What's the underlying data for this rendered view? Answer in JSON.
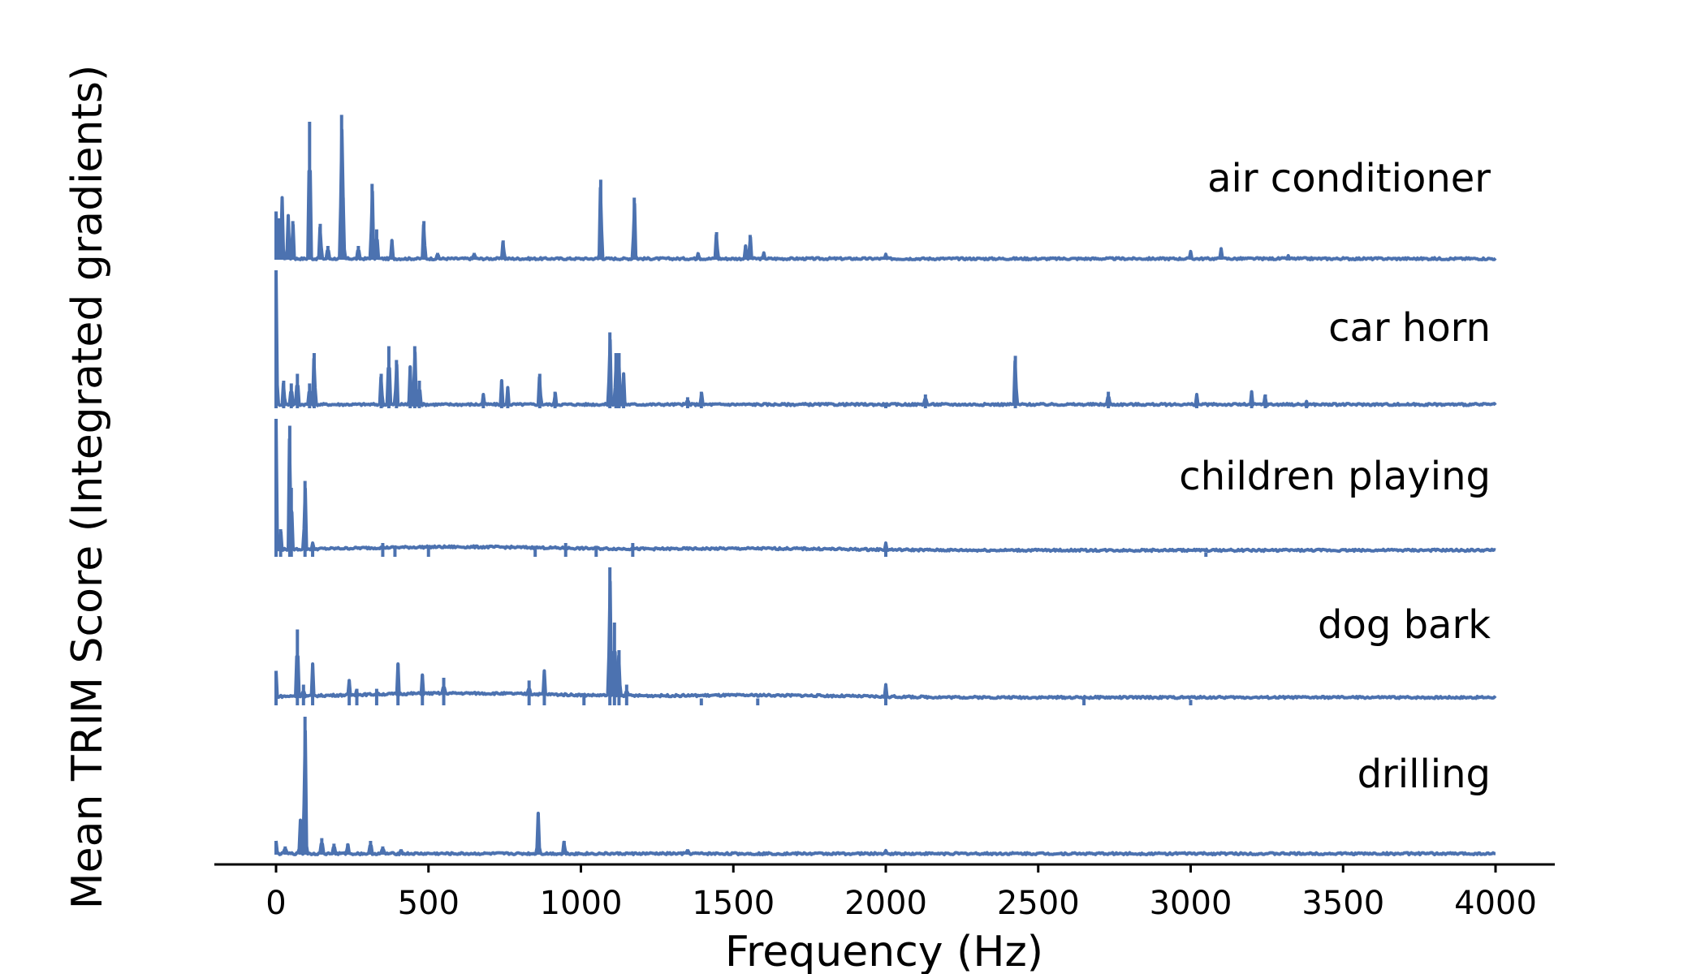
{
  "chart_data": {
    "type": "line",
    "title": "",
    "xlabel": "Frequency (Hz)",
    "ylabel": "Mean TRIM Score (Integrated gradients)",
    "xlim": [
      -200,
      4200
    ],
    "x_ticks": [
      0,
      500,
      1000,
      1500,
      2000,
      2500,
      3000,
      3500,
      4000
    ],
    "x_tick_labels": [
      "0",
      "500",
      "1000",
      "1500",
      "2000",
      "2500",
      "3000",
      "3500",
      "4000"
    ],
    "y_ticks": [],
    "layout": "stacked (vertically offset series, no y tick labels)",
    "legend": "series names placed at right above each trace",
    "line_color": "#4c72b0",
    "series": [
      {
        "name": "air conditioner",
        "baseline": 0.0,
        "peaks": [
          [
            0,
            0.35
          ],
          [
            10,
            0.3
          ],
          [
            20,
            0.45
          ],
          [
            40,
            0.32
          ],
          [
            55,
            0.28
          ],
          [
            110,
            1.0
          ],
          [
            145,
            0.26
          ],
          [
            170,
            0.1
          ],
          [
            215,
            1.05
          ],
          [
            220,
            0.45
          ],
          [
            270,
            0.1
          ],
          [
            315,
            0.55
          ],
          [
            330,
            0.22
          ],
          [
            380,
            0.14
          ],
          [
            485,
            0.28
          ],
          [
            530,
            0.05
          ],
          [
            650,
            0.05
          ],
          [
            745,
            0.14
          ],
          [
            1065,
            0.58
          ],
          [
            1175,
            0.45
          ],
          [
            1385,
            0.05
          ],
          [
            1445,
            0.2
          ],
          [
            1540,
            0.1
          ],
          [
            1555,
            0.18
          ],
          [
            1600,
            0.05
          ],
          [
            2000,
            0.04
          ],
          [
            3000,
            0.06
          ],
          [
            3100,
            0.08
          ],
          [
            3320,
            0.03
          ]
        ]
      },
      {
        "name": "car horn",
        "baseline": 0.02,
        "peaks": [
          [
            0,
            1.0
          ],
          [
            25,
            0.2
          ],
          [
            50,
            0.18
          ],
          [
            70,
            0.25
          ],
          [
            110,
            0.18
          ],
          [
            125,
            0.4
          ],
          [
            345,
            0.25
          ],
          [
            370,
            0.45
          ],
          [
            395,
            0.35
          ],
          [
            440,
            0.3
          ],
          [
            455,
            0.45
          ],
          [
            470,
            0.2
          ],
          [
            680,
            0.1
          ],
          [
            740,
            0.2
          ],
          [
            760,
            0.15
          ],
          [
            865,
            0.25
          ],
          [
            915,
            0.12
          ],
          [
            1095,
            0.55
          ],
          [
            1115,
            0.4
          ],
          [
            1125,
            0.4
          ],
          [
            1140,
            0.25
          ],
          [
            1350,
            0.08
          ],
          [
            1395,
            0.12
          ],
          [
            2000,
            0.03
          ],
          [
            2130,
            0.1
          ],
          [
            2425,
            0.38
          ],
          [
            2730,
            0.12
          ],
          [
            3020,
            0.1
          ],
          [
            3200,
            0.12
          ],
          [
            3245,
            0.1
          ],
          [
            3380,
            0.05
          ]
        ]
      },
      {
        "name": "children playing",
        "baseline": 0.04,
        "peaks": [
          [
            0,
            1.0
          ],
          [
            15,
            0.2
          ],
          [
            45,
            0.95
          ],
          [
            50,
            0.5
          ],
          [
            95,
            0.55
          ],
          [
            120,
            0.1
          ],
          [
            350,
            0.1
          ],
          [
            390,
            0.08
          ],
          [
            500,
            0.06
          ],
          [
            850,
            0.08
          ],
          [
            950,
            0.1
          ],
          [
            1050,
            0.08
          ],
          [
            1170,
            0.1
          ],
          [
            2000,
            0.1
          ],
          [
            3050,
            0.03
          ]
        ]
      },
      {
        "name": "dog bark",
        "baseline": 0.05,
        "peaks": [
          [
            0,
            0.25
          ],
          [
            70,
            0.55
          ],
          [
            90,
            0.15
          ],
          [
            120,
            0.3
          ],
          [
            240,
            0.18
          ],
          [
            265,
            0.12
          ],
          [
            330,
            0.12
          ],
          [
            400,
            0.3
          ],
          [
            480,
            0.22
          ],
          [
            550,
            0.2
          ],
          [
            830,
            0.18
          ],
          [
            880,
            0.25
          ],
          [
            1010,
            0.08
          ],
          [
            1095,
            1.0
          ],
          [
            1110,
            0.6
          ],
          [
            1125,
            0.4
          ],
          [
            1150,
            0.15
          ],
          [
            1395,
            0.05
          ],
          [
            1580,
            0.05
          ],
          [
            2000,
            0.15
          ],
          [
            2650,
            0.05
          ],
          [
            3000,
            0.04
          ]
        ]
      },
      {
        "name": "drilling",
        "baseline": 0.0,
        "peaks": [
          [
            0,
            0.1
          ],
          [
            30,
            0.06
          ],
          [
            80,
            0.25
          ],
          [
            95,
            1.0
          ],
          [
            150,
            0.12
          ],
          [
            190,
            0.08
          ],
          [
            235,
            0.08
          ],
          [
            310,
            0.1
          ],
          [
            350,
            0.06
          ],
          [
            410,
            0.04
          ],
          [
            860,
            0.3
          ],
          [
            945,
            0.1
          ],
          [
            1350,
            0.04
          ],
          [
            2000,
            0.03
          ]
        ]
      }
    ]
  }
}
